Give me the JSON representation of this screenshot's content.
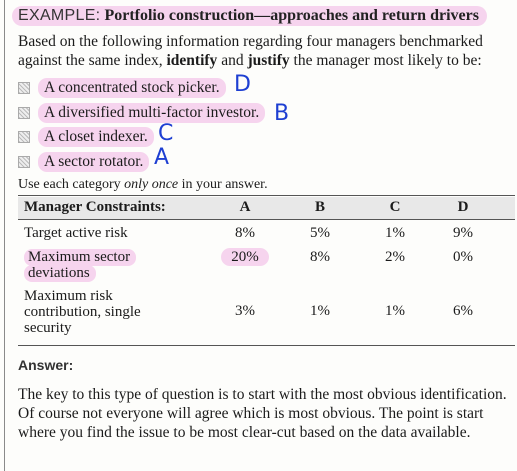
{
  "example": {
    "label": "EXAMPLE:",
    "title": "Portfolio construction—approaches and return drivers"
  },
  "intro": {
    "part1": "Based on the following information regarding four managers benchmarked against the same index, ",
    "bold1": "identify",
    "part2": " and ",
    "bold2": "justify",
    "part3": " the manager most likely to be:"
  },
  "options": [
    {
      "text": "A concentrated stock picker.",
      "answer": "D"
    },
    {
      "text": "A diversified multi-factor investor.",
      "answer": "B"
    },
    {
      "text": "A closet indexer.",
      "answer": "C"
    },
    {
      "text": "A sector rotator.",
      "answer": "A"
    }
  ],
  "instruction": {
    "part1": "Use each category ",
    "italic": "only once",
    "part2": " in your answer."
  },
  "table": {
    "headers": [
      "Manager Constraints:",
      "A",
      "B",
      "C",
      "D"
    ],
    "rows": [
      {
        "label": "Target active risk",
        "values": [
          "8%",
          "5%",
          "1%",
          "9%"
        ]
      },
      {
        "label": "Maximum sector deviations",
        "values": [
          "20%",
          "8%",
          "2%",
          "0%"
        ]
      },
      {
        "label": "Maximum risk contribution, single security",
        "values": [
          "3%",
          "1%",
          "1%",
          "6%"
        ]
      }
    ]
  },
  "answer": {
    "heading": "Answer:",
    "text": "The key to this type of question is to start with the most obvious identification. Of course not everyone will agree which is most obvious. The point is start where you find the issue to be most clear-cut based on the data available."
  },
  "colors": {
    "highlight": "#f6d4ee",
    "handwriting": "#1e3fd2"
  }
}
